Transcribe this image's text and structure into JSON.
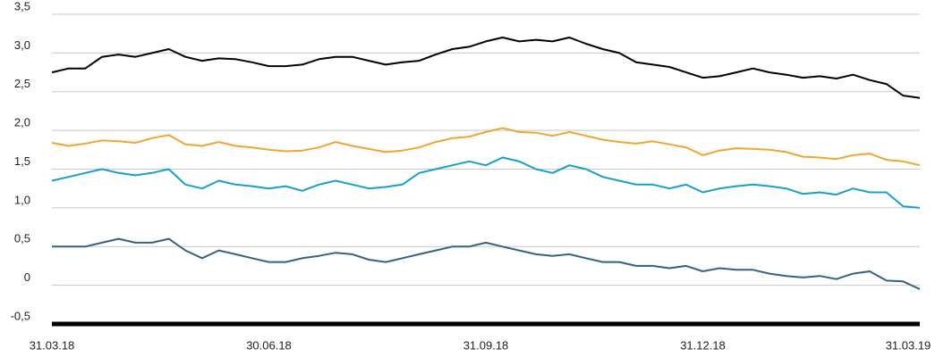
{
  "chart_data": {
    "type": "line",
    "categories": [
      "31.03.18",
      null,
      null,
      null,
      null,
      null,
      null,
      null,
      null,
      null,
      null,
      null,
      null,
      "30.06.18",
      null,
      null,
      null,
      null,
      null,
      null,
      null,
      null,
      null,
      null,
      null,
      null,
      "31.09.18",
      null,
      null,
      null,
      null,
      null,
      null,
      null,
      null,
      null,
      null,
      null,
      null,
      "31.12.18",
      null,
      null,
      null,
      null,
      null,
      null,
      null,
      null,
      null,
      null,
      null,
      null,
      "31.03.19"
    ],
    "series": [
      {
        "color": "#000000",
        "values": [
          2.75,
          2.8,
          2.8,
          2.95,
          2.98,
          2.95,
          3.0,
          3.05,
          2.95,
          2.9,
          2.93,
          2.92,
          2.88,
          2.83,
          2.83,
          2.85,
          2.92,
          2.95,
          2.95,
          2.9,
          2.85,
          2.88,
          2.9,
          2.98,
          3.05,
          3.08,
          3.15,
          3.2,
          3.15,
          3.17,
          3.15,
          3.2,
          3.12,
          3.05,
          3.0,
          2.88,
          2.85,
          2.82,
          2.75,
          2.68,
          2.7,
          2.75,
          2.8,
          2.75,
          2.72,
          2.68,
          2.7,
          2.67,
          2.72,
          2.65,
          2.6,
          2.45,
          2.42
        ]
      },
      {
        "color": "#f2a531",
        "values": [
          1.84,
          1.8,
          1.83,
          1.87,
          1.86,
          1.84,
          1.9,
          1.94,
          1.82,
          1.8,
          1.85,
          1.8,
          1.78,
          1.75,
          1.73,
          1.74,
          1.78,
          1.85,
          1.8,
          1.76,
          1.72,
          1.74,
          1.78,
          1.85,
          1.9,
          1.92,
          1.98,
          2.03,
          1.98,
          1.97,
          1.93,
          1.98,
          1.93,
          1.88,
          1.85,
          1.83,
          1.86,
          1.82,
          1.78,
          1.68,
          1.74,
          1.77,
          1.76,
          1.75,
          1.72,
          1.66,
          1.65,
          1.63,
          1.68,
          1.7,
          1.62,
          1.6,
          1.55
        ]
      },
      {
        "color": "#17a0cc",
        "values": [
          1.35,
          1.4,
          1.45,
          1.5,
          1.45,
          1.42,
          1.45,
          1.5,
          1.3,
          1.25,
          1.35,
          1.3,
          1.28,
          1.25,
          1.28,
          1.22,
          1.3,
          1.35,
          1.3,
          1.25,
          1.27,
          1.3,
          1.45,
          1.5,
          1.55,
          1.6,
          1.55,
          1.65,
          1.6,
          1.5,
          1.45,
          1.55,
          1.5,
          1.4,
          1.35,
          1.3,
          1.3,
          1.25,
          1.3,
          1.2,
          1.25,
          1.28,
          1.3,
          1.28,
          1.25,
          1.18,
          1.2,
          1.17,
          1.25,
          1.2,
          1.2,
          1.02,
          1.0
        ]
      },
      {
        "color": "#36627e",
        "values": [
          0.5,
          0.5,
          0.5,
          0.55,
          0.6,
          0.55,
          0.55,
          0.6,
          0.45,
          0.35,
          0.45,
          0.4,
          0.35,
          0.3,
          0.3,
          0.35,
          0.38,
          0.42,
          0.4,
          0.33,
          0.3,
          0.35,
          0.4,
          0.45,
          0.5,
          0.5,
          0.55,
          0.5,
          0.45,
          0.4,
          0.38,
          0.4,
          0.35,
          0.3,
          0.3,
          0.25,
          0.25,
          0.22,
          0.25,
          0.18,
          0.22,
          0.2,
          0.2,
          0.15,
          0.12,
          0.1,
          0.12,
          0.08,
          0.15,
          0.18,
          0.06,
          0.05,
          -0.05
        ]
      }
    ],
    "ylim": [
      -0.5,
      3.5
    ],
    "yticks": [
      {
        "value": -0.5,
        "label": "-0,5"
      },
      0,
      {
        "value": 0.5,
        "label": "0,5"
      },
      {
        "value": 1.0,
        "label": "1,0"
      },
      {
        "value": 1.5,
        "label": "1,5"
      },
      {
        "value": 2.0,
        "label": "2,0"
      },
      {
        "value": 2.5,
        "label": "2,5"
      },
      {
        "value": 3.0,
        "label": "3,0"
      },
      {
        "value": 3.5,
        "label": "3,5"
      }
    ],
    "grid": true
  }
}
